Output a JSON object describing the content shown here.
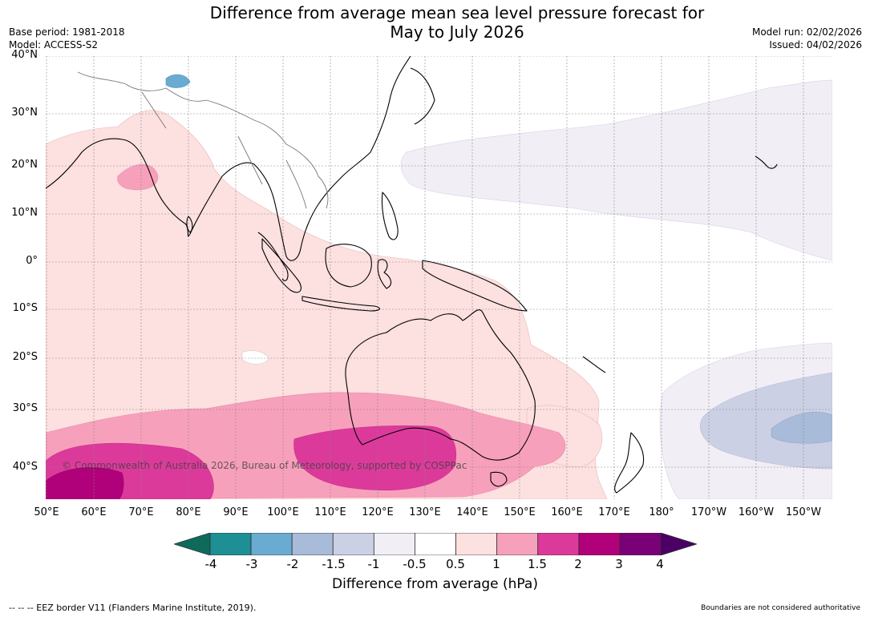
{
  "title": {
    "line1": "Difference from average mean sea level pressure forecast for",
    "line2": "May to July 2026"
  },
  "meta": {
    "base_period": "Base period: 1981-2018",
    "model": "Model: ACCESS-S2",
    "model_run": "Model run: 02/02/2026",
    "issued": "Issued: 04/02/2026"
  },
  "map": {
    "latitude_labels": [
      "40°N",
      "30°N",
      "20°N",
      "10°N",
      "0°",
      "10°S",
      "20°S",
      "30°S",
      "40°S"
    ],
    "longitude_labels": [
      "50°E",
      "60°E",
      "70°E",
      "80°E",
      "90°E",
      "100°E",
      "110°E",
      "120°E",
      "130°E",
      "140°E",
      "150°E",
      "160°E",
      "170°E",
      "180°",
      "170°W",
      "160°W",
      "150°W"
    ],
    "copyright": "© Commonwealth of Australia 2026, Bureau of Meteorology, supported by COSPPac"
  },
  "colorbar": {
    "tick_labels": [
      "-4",
      "-3",
      "-2",
      "-1.5",
      "-1",
      "-0.5",
      "0.5",
      "1",
      "1.5",
      "2",
      "3",
      "4"
    ],
    "colors": [
      "#0e6b5b",
      "#1e8f94",
      "#6aabd2",
      "#a8bbd8",
      "#ccd0e4",
      "#f2eef6",
      "#ffffff",
      "#fde0e0",
      "#f7a0bb",
      "#dc3a9b",
      "#b0007a",
      "#7a0078",
      "#4a0065"
    ],
    "label": "Difference from average (hPa)"
  },
  "footer": {
    "eez": "--  --  -- EEZ border V11 (Flanders Marine Institute, 2019).",
    "authority": "Boundaries are not considered authoritative"
  }
}
